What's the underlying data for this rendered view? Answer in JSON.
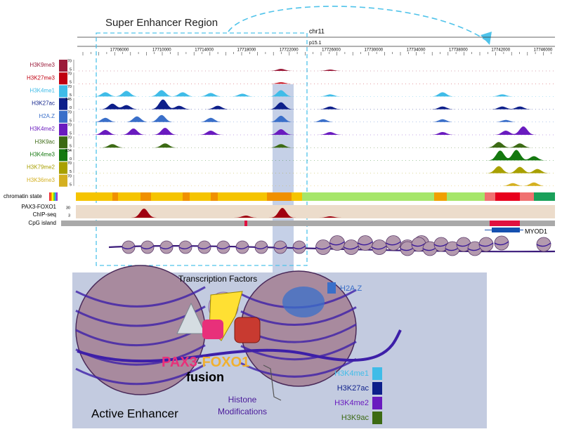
{
  "title": "Super Enhancer Region",
  "chromosome": "chr11",
  "band": "p15.1",
  "coordinates": [
    17706000,
    17710000,
    17714000,
    17718000,
    17722000,
    17726000,
    17730000,
    17734000,
    17738000,
    17742000,
    17746000
  ],
  "tracks": [
    {
      "name": "H3K9me3",
      "color": "#9b1b3a",
      "scale": [
        70,
        5
      ]
    },
    {
      "name": "H3K27me3",
      "color": "#c00010",
      "scale": [
        70,
        5
      ]
    },
    {
      "name": "H3K4me1",
      "color": "#3fbce8",
      "scale": [
        70,
        5
      ]
    },
    {
      "name": "H3K27ac",
      "color": "#0d1f8a",
      "scale": [
        145,
        0
      ]
    },
    {
      "name": "H2A.Z",
      "color": "#3a6fc9",
      "scale": [
        70,
        5
      ]
    },
    {
      "name": "H3K4me2",
      "color": "#6a1bbf",
      "scale": [
        70,
        5
      ]
    },
    {
      "name": "H3K9ac",
      "color": "#3c6a14",
      "scale": [
        70,
        5
      ]
    },
    {
      "name": "H3K4me3",
      "color": "#14780f",
      "scale": [
        234,
        0
      ]
    },
    {
      "name": "H3K79me2",
      "color": "#a8a000",
      "scale": [
        70,
        5
      ]
    },
    {
      "name": "H3K36me3",
      "color": "#d4b020",
      "scale": [
        70,
        5
      ]
    }
  ],
  "chromatin_state": "chromatin state",
  "chip": {
    "label": [
      "PAX3-FOXO1",
      "ChIP-seq"
    ],
    "scale": [
      30,
      3
    ]
  },
  "cpg": "CpG island",
  "gene": "MYOD1",
  "inset": {
    "transcription_factors": "Transcription Factors",
    "h2az": "H2A.Z",
    "fusion": {
      "pax3": "PAX3",
      "dash": "-",
      "foxo1": "FOXO1",
      "word": "fusion"
    },
    "histone": [
      "Histone",
      "Modifications"
    ],
    "legend": [
      {
        "name": "H3K4me1",
        "color": "#3fbce8"
      },
      {
        "name": "H3K27ac",
        "color": "#0d1f8a"
      },
      {
        "name": "H3K4me2",
        "color": "#6a1bbf"
      },
      {
        "name": "H3K9ac",
        "color": "#3c6a14"
      }
    ],
    "title": "Active Enhancer"
  }
}
